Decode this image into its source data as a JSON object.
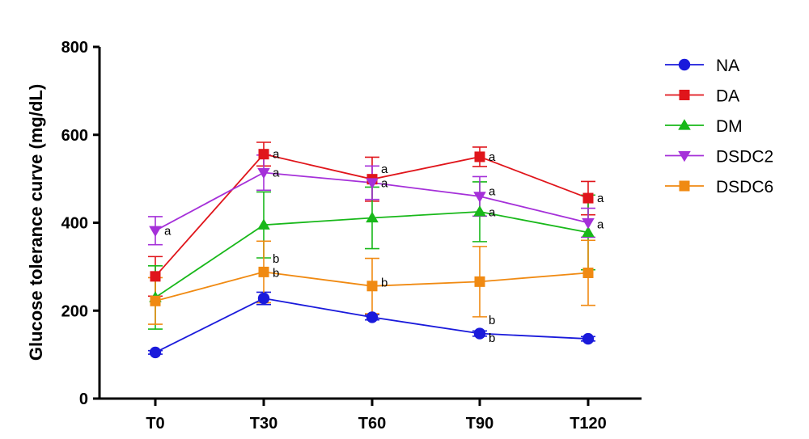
{
  "chart_data": {
    "type": "line",
    "title": "",
    "xlabel": "",
    "ylabel": "Glucose tolerance curve (mg/dL)",
    "categories": [
      "T0",
      "T30",
      "T60",
      "T90",
      "T120"
    ],
    "ylim": [
      0,
      800
    ],
    "yticks": [
      "0",
      "200",
      "400",
      "600",
      "800"
    ],
    "grid": false,
    "error_bars": true,
    "legend_position": "right",
    "series": [
      {
        "name": "NA",
        "color": "#1a1adb",
        "marker": "circle",
        "values": [
          105,
          228,
          185,
          148,
          136
        ],
        "error": [
          4,
          14,
          6,
          6,
          5
        ]
      },
      {
        "name": "DA",
        "color": "#e0151b",
        "marker": "square",
        "values": [
          278,
          556,
          499,
          550,
          456
        ],
        "error": [
          45,
          27,
          50,
          22,
          38
        ]
      },
      {
        "name": "DM",
        "color": "#18b81a",
        "marker": "triangle-up",
        "values": [
          230,
          395,
          411,
          425,
          378
        ],
        "error": [
          72,
          75,
          70,
          68,
          85
        ]
      },
      {
        "name": "DSDC2",
        "color": "#a530d9",
        "marker": "triangle-down",
        "values": [
          382,
          514,
          491,
          460,
          400
        ],
        "error": [
          32,
          40,
          38,
          45,
          33
        ]
      },
      {
        "name": "DSDC6",
        "color": "#f08a12",
        "marker": "square",
        "values": [
          222,
          288,
          256,
          266,
          286
        ],
        "error": [
          53,
          70,
          63,
          80,
          74
        ]
      }
    ],
    "annotations": [
      {
        "text": "a",
        "category": "T0",
        "y": 382
      },
      {
        "text": "a",
        "category": "T30",
        "y": 556
      },
      {
        "text": "a",
        "category": "T30",
        "y": 514
      },
      {
        "text": "b",
        "category": "T30",
        "y": 318
      },
      {
        "text": "b",
        "category": "T30",
        "y": 286
      },
      {
        "text": "a",
        "category": "T60",
        "y": 522
      },
      {
        "text": "a",
        "category": "T60",
        "y": 490
      },
      {
        "text": "b",
        "category": "T60",
        "y": 264
      },
      {
        "text": "a",
        "category": "T90",
        "y": 550
      },
      {
        "text": "a",
        "category": "T90",
        "y": 472
      },
      {
        "text": "a",
        "category": "T90",
        "y": 424
      },
      {
        "text": "b",
        "category": "T90",
        "y": 178
      },
      {
        "text": "b",
        "category": "T90",
        "y": 138
      },
      {
        "text": "a",
        "category": "T120",
        "y": 456
      },
      {
        "text": "a",
        "category": "T120",
        "y": 396
      }
    ]
  }
}
